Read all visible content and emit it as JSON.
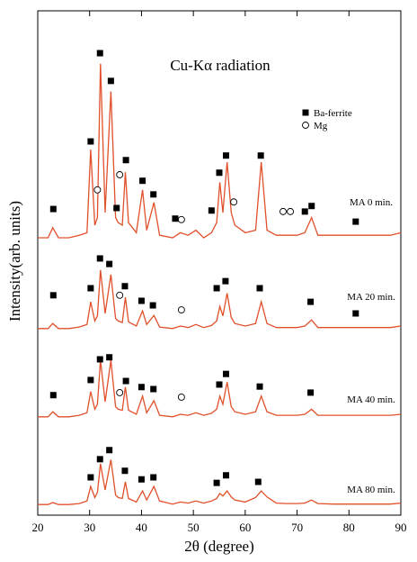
{
  "chart_data": {
    "type": "line",
    "title": "Cu-Kα radiation",
    "x_label": "2θ (degree)",
    "y_label": "Intensity(arb. units)",
    "xlim": [
      20,
      90
    ],
    "xticks": [
      20,
      30,
      40,
      50,
      60,
      70,
      80,
      90
    ],
    "ylim": [
      0,
      100
    ],
    "x": [
      20,
      22,
      22.9,
      24,
      26,
      28,
      29.5,
      30.2,
      31,
      31.5,
      32.1,
      33,
      34.1,
      35,
      35.5,
      36.3,
      36.9,
      37.5,
      39,
      40.2,
      41,
      42.4,
      43.5,
      46,
      47.5,
      49,
      50.5,
      52,
      53.5,
      54.5,
      55.1,
      55.7,
      56.5,
      57.3,
      58,
      60,
      62,
      63.1,
      64.2,
      66,
      68,
      70,
      71.5,
      72.8,
      74,
      77,
      79,
      81.3,
      83,
      85,
      88,
      90
    ],
    "series": [
      {
        "name": "MA 0 min.",
        "color": "#e0502a",
        "values": [
          55,
          55,
          57,
          55,
          55,
          55.5,
          56,
          72.5,
          57.5,
          59,
          89.5,
          60,
          84,
          59,
          58,
          57.5,
          68,
          58,
          56,
          64.5,
          56.5,
          62,
          55.5,
          55,
          56,
          55.5,
          56.5,
          55,
          56,
          58,
          66,
          60,
          70,
          60,
          57.5,
          56,
          56.5,
          70,
          56.5,
          55.5,
          55.5,
          55.5,
          56,
          59,
          55.5,
          55.5,
          55.5,
          55.5,
          55.5,
          55.5,
          55.5,
          56
        ]
      },
      {
        "name": "MA 20 min.",
        "color": "#e0502a",
        "values": [
          37,
          37,
          38,
          37,
          37,
          37.3,
          37.8,
          42.3,
          38.5,
          39.5,
          48.6,
          40,
          47.7,
          39,
          38.5,
          38.2,
          43.2,
          38.3,
          37.5,
          40.5,
          37.8,
          39.6,
          37.3,
          37,
          37.5,
          37.2,
          37.8,
          37.2,
          37.6,
          38.5,
          41.4,
          39.5,
          44,
          39.2,
          38,
          37.5,
          38,
          42.3,
          38,
          37.2,
          37.2,
          37.2,
          37.5,
          38.7,
          37.2,
          37.2,
          37.2,
          37.2,
          37.2,
          37.2,
          37.2,
          37.5
        ]
      },
      {
        "name": "MA 40 min.",
        "color": "#e0502a",
        "values": [
          19.5,
          19.5,
          20.5,
          19.5,
          19.5,
          19.8,
          20.3,
          24.5,
          21,
          22,
          30.7,
          22.5,
          30.7,
          21.5,
          21,
          20.8,
          25.4,
          20.8,
          20,
          23.6,
          20.3,
          22.7,
          19.8,
          19.5,
          20,
          19.8,
          20.3,
          19.8,
          20.2,
          21,
          23.6,
          22,
          26.4,
          21.5,
          20.5,
          20,
          20.5,
          23.6,
          20.5,
          19.8,
          19.8,
          19.8,
          20,
          21,
          19.8,
          19.8,
          19.8,
          19.8,
          19.8,
          19.8,
          19.8,
          20
        ]
      },
      {
        "name": "MA 80 min.",
        "color": "#e0502a",
        "values": [
          2.1,
          2.1,
          2.5,
          2.1,
          2.1,
          2.3,
          2.8,
          5.7,
          3.5,
          4.5,
          10.2,
          5,
          11,
          4,
          3.5,
          3.3,
          6.6,
          3.3,
          2.6,
          4.8,
          3,
          5.7,
          2.8,
          2.2,
          2.6,
          2.4,
          2.8,
          2.4,
          2.8,
          3.3,
          4.3,
          3.8,
          4.8,
          3.6,
          3,
          2.6,
          3.5,
          4.8,
          3.6,
          2.4,
          2.3,
          2.3,
          2.4,
          3,
          2.3,
          2.2,
          2.2,
          2.2,
          2.2,
          2.2,
          2.2,
          2.4
        ]
      }
    ],
    "markers": [
      {
        "name": "Ba-ferrite",
        "symbol": "square",
        "x": [
          23,
          30.2,
          32,
          34.1,
          35.2,
          37,
          40.2,
          42.3,
          46.5,
          53.5,
          55,
          56.3,
          63,
          71.5,
          72.8,
          81.3,
          23,
          30.2,
          32,
          33.8,
          36.8,
          40,
          42.2,
          54.5,
          56.2,
          62.8,
          72.6,
          81.3,
          23,
          30.2,
          32,
          33.8,
          37,
          40,
          42.3,
          55,
          56.3,
          62.8,
          72.6,
          30.2,
          32,
          33.8,
          36.8,
          40,
          42.3,
          54.5,
          56.3,
          62.5
        ],
        "y": [
          60.7,
          74.1,
          91.6,
          86.1,
          60.9,
          70.4,
          66.3,
          63.6,
          58.8,
          60.4,
          67.9,
          71.3,
          71.3,
          60.2,
          61.3,
          58.2,
          43.6,
          45,
          50.9,
          49.8,
          45.4,
          42.5,
          41.6,
          45,
          46.4,
          45,
          42.3,
          40,
          23.8,
          26.8,
          30.9,
          31.3,
          26.6,
          25.4,
          25,
          25.9,
          28,
          25.5,
          24.3,
          7.5,
          11.1,
          12.9,
          8.8,
          7.1,
          7.5,
          6.4,
          7.9,
          6.6
        ]
      },
      {
        "name": "Mg",
        "symbol": "circle",
        "x": [
          31.5,
          35.8,
          47.7,
          57.8,
          67.3,
          68.7,
          35.8,
          47.7,
          35.8,
          47.7
        ],
        "y": [
          64.5,
          67.5,
          58.6,
          62.1,
          60.2,
          60.2,
          43.6,
          40.7,
          24.3,
          23.4
        ]
      }
    ]
  }
}
